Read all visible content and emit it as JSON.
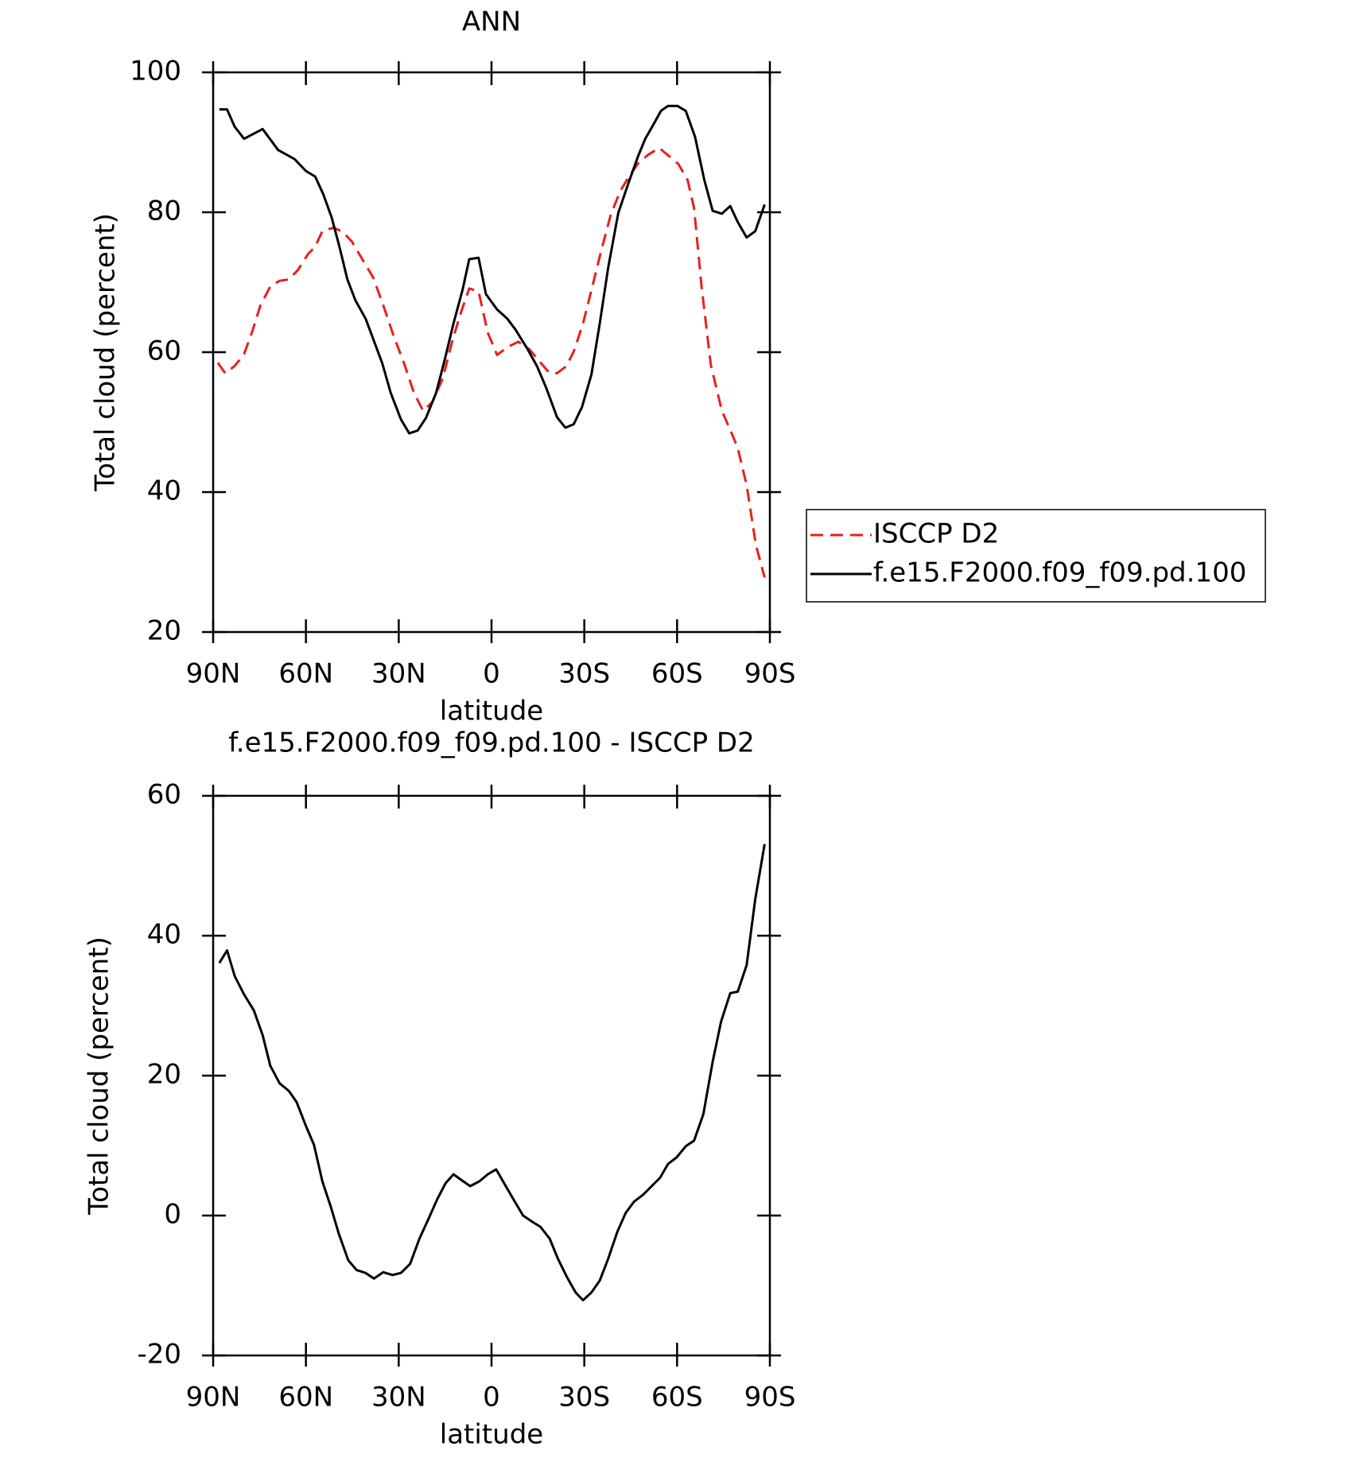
{
  "chart_data": [
    {
      "type": "line",
      "title": "ANN",
      "xlabel": "latitude",
      "ylabel": "Total cloud (percent)",
      "xlim": [
        90,
        -90
      ],
      "ylim": [
        20,
        100
      ],
      "xticks": [
        {
          "value": 90,
          "label": "90N"
        },
        {
          "value": 60,
          "label": "60N"
        },
        {
          "value": 30,
          "label": "30N"
        },
        0,
        {
          "value": -30,
          "label": "30S"
        },
        {
          "value": -60,
          "label": "60S"
        },
        {
          "value": -90,
          "label": "90S"
        }
      ],
      "yticks": [
        20,
        40,
        60,
        80,
        100
      ],
      "legend": "right",
      "series": [
        {
          "name": "ISCCP D2",
          "color": "#e8201b",
          "style": "dashed",
          "x": [
            88.5,
            86.1,
            83.1,
            80.1,
            77.4,
            74.7,
            71.5,
            68.5,
            65.5,
            62.5,
            59.2,
            57.1,
            54.7,
            51.1,
            48.1,
            45.1,
            42.2,
            38.3,
            35,
            31.7,
            28.1,
            25.1,
            22.1,
            19.1,
            15.8,
            12.8,
            10.1,
            7.2,
            4.2,
            1.2,
            -1.8,
            -5.1,
            -8.7,
            -12.3,
            -15.3,
            -18.6,
            -21.2,
            -24.2,
            -26.6,
            -29.6,
            -32.6,
            -35.6,
            -38.6,
            -41.6,
            -44.6,
            -47.6,
            -50.6,
            -54.2,
            -57.2,
            -60.4,
            -63.4,
            -65.5,
            -67.9,
            -70.9,
            -74.5,
            -77.2,
            -79.6,
            -82.5,
            -85.5,
            -88.3
          ],
          "values": [
            58.5,
            57.0,
            58.0,
            59.6,
            62.9,
            66.7,
            69.4,
            70.2,
            70.4,
            71.8,
            74.1,
            75.0,
            77.3,
            77.8,
            77.2,
            75.8,
            73.6,
            70.7,
            66.7,
            62.4,
            58.2,
            54.2,
            51.6,
            52.9,
            56.2,
            61.4,
            65.4,
            69.1,
            68.7,
            62.8,
            59.6,
            60.7,
            61.5,
            60.4,
            58.8,
            57.1,
            57.0,
            58.0,
            60.1,
            64.1,
            69.4,
            74.7,
            79.7,
            83.0,
            85.2,
            87.1,
            88.2,
            89.2,
            88.1,
            86.9,
            84.6,
            80.6,
            69.4,
            58.2,
            51.6,
            48.9,
            46.3,
            41.0,
            32.4,
            27.8
          ]
        },
        {
          "name": "f.e15.F2000.f09_f09.pd.100",
          "color": "#000000",
          "style": "solid",
          "x": [
            88,
            85.5,
            83,
            80,
            74,
            69,
            63.7,
            60,
            57,
            54.4,
            51.7,
            49.3,
            46.6,
            44,
            40.7,
            35.3,
            32.6,
            29.3,
            26.6,
            23.9,
            21.2,
            17.9,
            15.2,
            12.3,
            9.3,
            7.2,
            4.2,
            1.8,
            -1.8,
            -5.1,
            -7.8,
            -11.7,
            -14.7,
            -17.7,
            -21.2,
            -23.9,
            -26.6,
            -29.3,
            -32.3,
            -35,
            -37.7,
            -41,
            -44.3,
            -47.3,
            -49.7,
            -52.3,
            -54.8,
            -57.1,
            -60.1,
            -62.8,
            -65.8,
            -68.8,
            -71.5,
            -74.5,
            -77.2,
            -79.6,
            -82.5,
            -85.3,
            -88.3
          ],
          "values": [
            94.7,
            94.7,
            92.2,
            90.5,
            91.9,
            88.9,
            87.6,
            85.9,
            85.1,
            82.6,
            79.3,
            75.3,
            70.4,
            67.4,
            64.8,
            58.4,
            54.2,
            50.4,
            48.4,
            48.8,
            50.6,
            54.2,
            58.8,
            64.1,
            69.0,
            73.3,
            73.5,
            68.3,
            66.1,
            64.8,
            63.2,
            60.4,
            58.0,
            54.9,
            50.7,
            49.2,
            49.7,
            52.2,
            56.8,
            64.1,
            72.0,
            79.9,
            84.2,
            87.9,
            90.5,
            92.5,
            94.5,
            95.2,
            95.2,
            94.5,
            90.8,
            84.6,
            80.2,
            79.8,
            80.9,
            78.6,
            76.4,
            77.3,
            81.1
          ]
        }
      ]
    },
    {
      "type": "line",
      "title": "f.e15.F2000.f09_f09.pd.100 - ISCCP D2",
      "xlabel": "latitude",
      "ylabel": "Total cloud (percent)",
      "xlim": [
        90,
        -90
      ],
      "ylim": [
        -20,
        60
      ],
      "xticks": [
        {
          "value": 90,
          "label": "90N"
        },
        {
          "value": 60,
          "label": "60N"
        },
        {
          "value": 30,
          "label": "30N"
        },
        0,
        {
          "value": -30,
          "label": "30S"
        },
        {
          "value": -60,
          "label": "60S"
        },
        {
          "value": -90,
          "label": "90S"
        }
      ],
      "yticks": [
        -20,
        0,
        20,
        40,
        60
      ],
      "series": [
        {
          "color": "#000000",
          "style": "solid",
          "x": [
            88,
            85.5,
            83,
            80,
            76.8,
            74,
            71.5,
            68.5,
            65.5,
            63,
            60,
            57.4,
            54.7,
            52,
            49.3,
            46.3,
            43.6,
            40.7,
            38,
            35,
            32,
            29.3,
            26.3,
            23.3,
            20.3,
            17.6,
            14.9,
            12.3,
            9.5,
            6.9,
            3.9,
            1.2,
            -1.5,
            -4.5,
            -7.5,
            -10.2,
            -13.2,
            -15.8,
            -18.8,
            -21.5,
            -24.5,
            -27.2,
            -29.6,
            -32.3,
            -35,
            -37.7,
            -40.7,
            -43.4,
            -46.1,
            -49.1,
            -51.8,
            -54.5,
            -57.1,
            -59.8,
            -62.8,
            -65.5,
            -68.5,
            -71.5,
            -74.2,
            -77.2,
            -79.6,
            -82.5,
            -85.3,
            -88.3
          ],
          "values": [
            36.1,
            37.9,
            34.2,
            31.6,
            29.3,
            25.8,
            21.4,
            18.9,
            17.8,
            16.2,
            12.8,
            10.1,
            4.9,
            1.3,
            -2.7,
            -6.4,
            -7.8,
            -8.2,
            -9.0,
            -8.1,
            -8.5,
            -8.2,
            -6.9,
            -3.3,
            -0.4,
            2.3,
            4.6,
            5.9,
            5.0,
            4.2,
            4.9,
            5.9,
            6.6,
            4.3,
            2.0,
            0.0,
            -0.9,
            -1.6,
            -3.3,
            -6.2,
            -8.9,
            -11.0,
            -12.1,
            -11.0,
            -9.3,
            -6.2,
            -2.3,
            0.4,
            2.0,
            3.0,
            4.2,
            5.4,
            7.4,
            8.3,
            9.9,
            10.7,
            14.5,
            22.0,
            27.7,
            31.8,
            32.0,
            35.8,
            45.3,
            53.1
          ]
        }
      ]
    }
  ]
}
